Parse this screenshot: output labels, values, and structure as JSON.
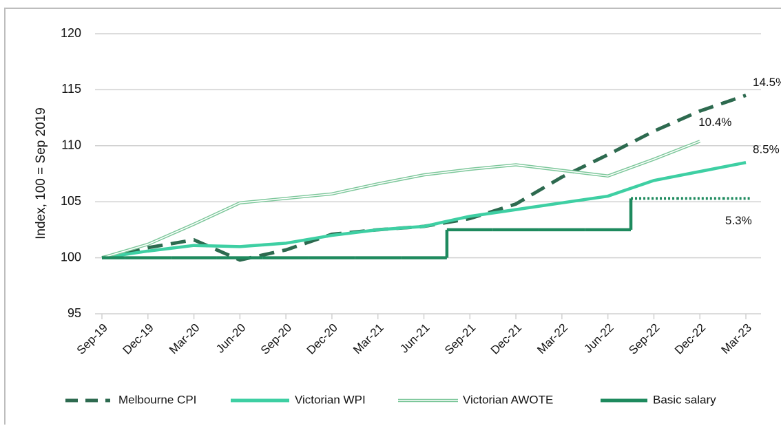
{
  "chart_data": {
    "type": "line",
    "y_label": "Index, 100 = Sep 2019",
    "categories": [
      "Sep-19",
      "Dec-19",
      "Mar-20",
      "Jun-20",
      "Sep-20",
      "Dec-20",
      "Mar-21",
      "Jun-21",
      "Sep-21",
      "Dec-21",
      "Mar-22",
      "Jun-22",
      "Sep-22",
      "Dec-22",
      "Mar-23"
    ],
    "ylim": [
      95,
      120
    ],
    "yticks": [
      95,
      100,
      105,
      110,
      115,
      120
    ],
    "grid": true,
    "legend": "bottom",
    "series": [
      {
        "name": "Melbourne CPI",
        "color": "#2d6a4f",
        "style": "dashed",
        "values": [
          100,
          100.9,
          101.6,
          99.8,
          100.7,
          102.1,
          102.5,
          102.8,
          103.5,
          104.8,
          107.2,
          109.2,
          111.3,
          113.1,
          114.5
        ]
      },
      {
        "name": "Victorian WPI",
        "color": "#3ecfa3",
        "style": "solid",
        "values": [
          100,
          100.6,
          101.1,
          101.0,
          101.3,
          102.0,
          102.5,
          102.8,
          103.7,
          104.3,
          104.9,
          105.5,
          106.9,
          107.7,
          108.5
        ]
      },
      {
        "name": "Victorian AWOTE",
        "color": "#7cc79a",
        "style": "double",
        "values": [
          100,
          101.2,
          103.0,
          104.9,
          105.3,
          105.7,
          106.6,
          107.4,
          107.9,
          108.3,
          107.8,
          107.3,
          108.8,
          110.4,
          null
        ]
      },
      {
        "name": "Basic salary",
        "color": "#1e8a5e",
        "style": "step",
        "dotted_from": 12,
        "values": [
          100,
          100,
          100,
          100,
          100,
          100,
          100,
          100,
          102.5,
          102.5,
          102.5,
          102.5,
          105.3,
          105.3,
          105.3
        ]
      }
    ],
    "annotations": [
      {
        "text": "14.5%",
        "series": 0
      },
      {
        "text": "10.4%",
        "series": 2
      },
      {
        "text": "8.5%",
        "series": 1
      },
      {
        "text": "5.3%",
        "series": 3
      }
    ]
  }
}
